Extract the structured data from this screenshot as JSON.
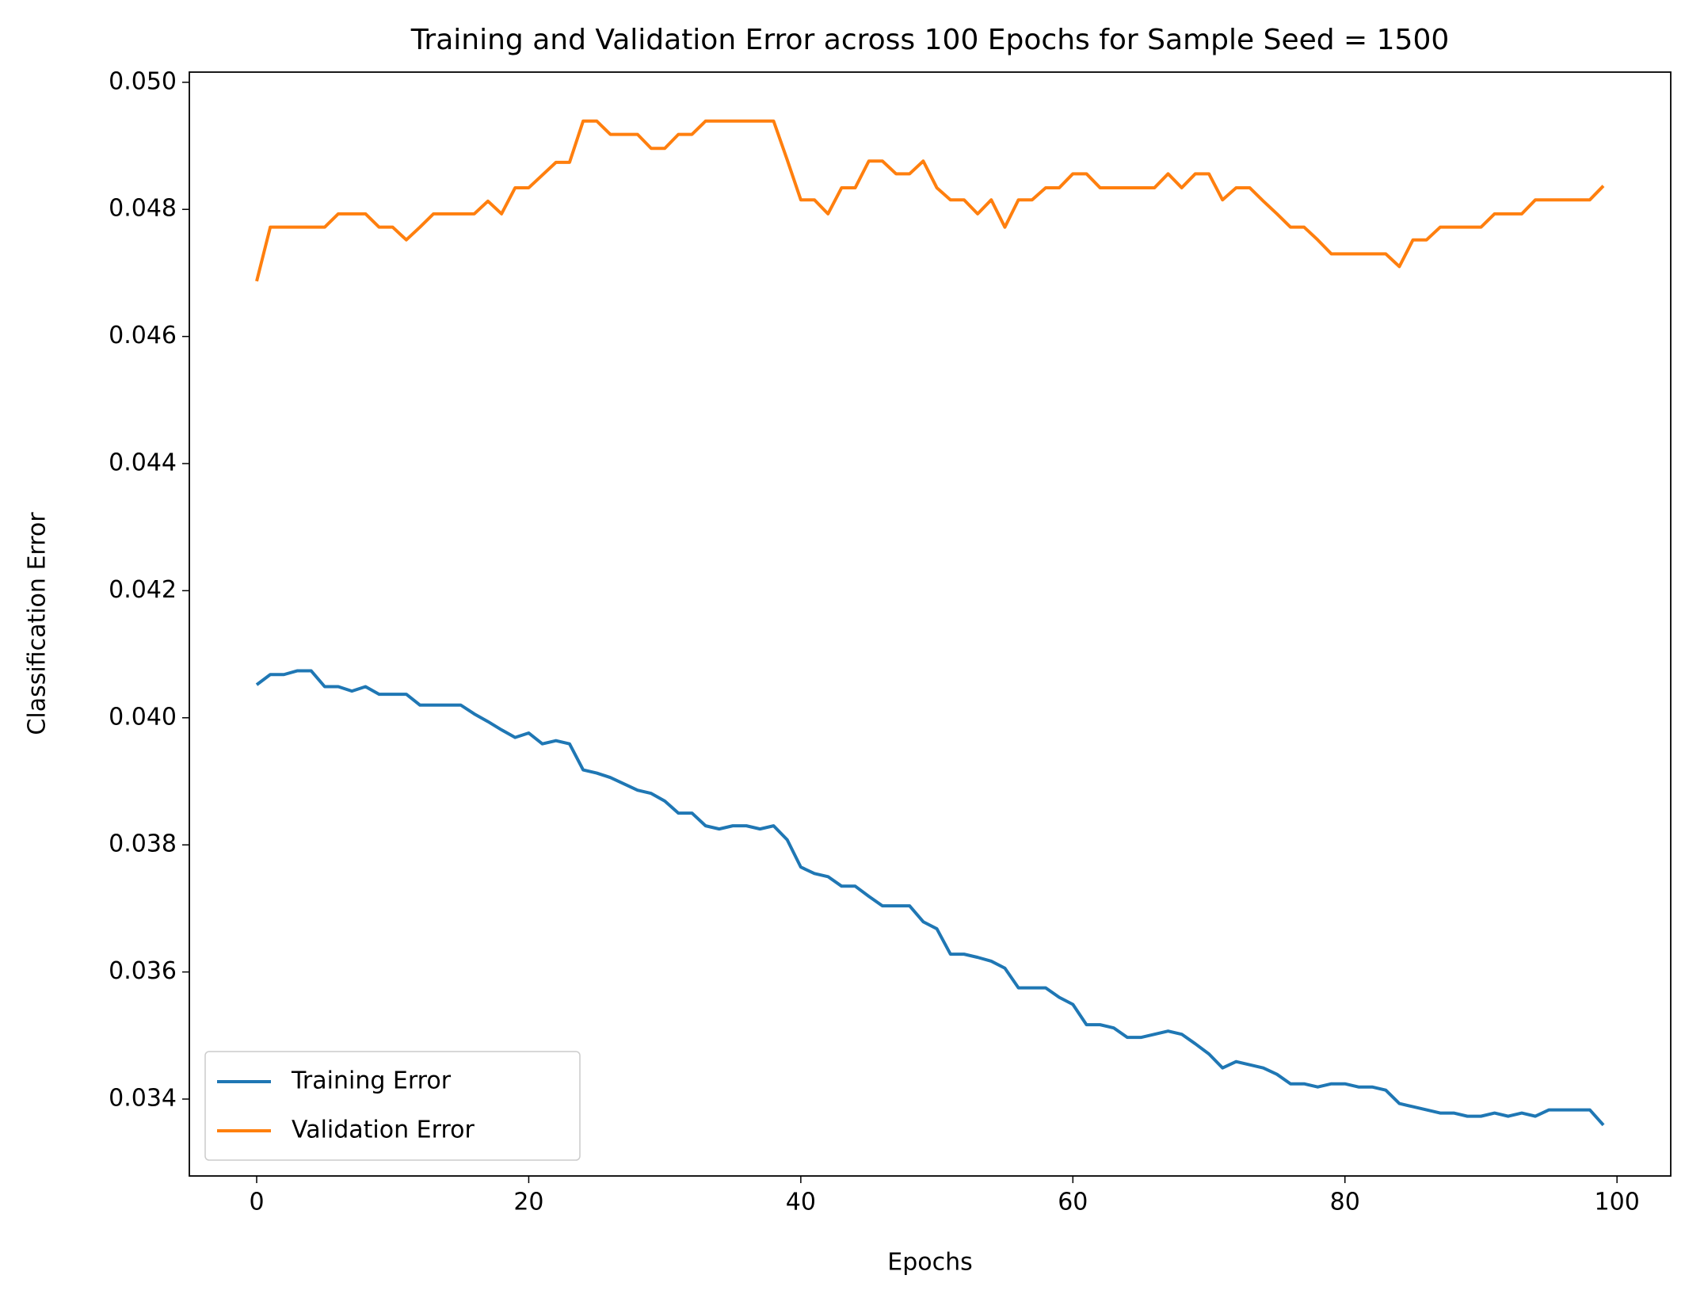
{
  "chart_data": {
    "type": "line",
    "title": "Training and Validation Error across 100 Epochs for Sample Seed = 1500",
    "xlabel": "Epochs",
    "ylabel": "Classification Error",
    "x": [
      0,
      1,
      2,
      3,
      4,
      5,
      6,
      7,
      8,
      9,
      10,
      11,
      12,
      13,
      14,
      15,
      16,
      17,
      18,
      19,
      20,
      21,
      22,
      23,
      24,
      25,
      26,
      27,
      28,
      29,
      30,
      31,
      32,
      33,
      34,
      35,
      36,
      37,
      38,
      39,
      40,
      41,
      42,
      43,
      44,
      45,
      46,
      47,
      48,
      49,
      50,
      51,
      52,
      53,
      54,
      55,
      56,
      57,
      58,
      59,
      60,
      61,
      62,
      63,
      64,
      65,
      66,
      67,
      68,
      69,
      70,
      71,
      72,
      73,
      74,
      75,
      76,
      77,
      78,
      79,
      80,
      81,
      82,
      83,
      84,
      85,
      86,
      87,
      88,
      89,
      90,
      91,
      92,
      93,
      94,
      95,
      96,
      97,
      98,
      99
    ],
    "series": [
      {
        "name": "Training Error",
        "color": "#1f77b4",
        "values": [
          0.04052,
          0.04068,
          0.04068,
          0.04074,
          0.04074,
          0.04049,
          0.04049,
          0.04042,
          0.04049,
          0.04037,
          0.04037,
          0.04037,
          0.0402,
          0.0402,
          0.0402,
          0.0402,
          0.04006,
          0.03994,
          0.03981,
          0.03969,
          0.03976,
          0.03959,
          0.03964,
          0.03959,
          0.03918,
          0.03913,
          0.03906,
          0.03896,
          0.03886,
          0.03881,
          0.03869,
          0.0385,
          0.0385,
          0.0383,
          0.03825,
          0.0383,
          0.0383,
          0.03825,
          0.0383,
          0.03808,
          0.03765,
          0.03755,
          0.0375,
          0.03735,
          0.03735,
          0.03719,
          0.03704,
          0.03704,
          0.03704,
          0.03679,
          0.03668,
          0.03628,
          0.03628,
          0.03623,
          0.03617,
          0.03606,
          0.03575,
          0.03575,
          0.03575,
          0.0356,
          0.03549,
          0.03517,
          0.03517,
          0.03512,
          0.03497,
          0.03497,
          0.03502,
          0.03507,
          0.03502,
          0.03487,
          0.03471,
          0.03449,
          0.03459,
          0.03454,
          0.03449,
          0.03439,
          0.03424,
          0.03424,
          0.03419,
          0.03424,
          0.03424,
          0.03419,
          0.03419,
          0.03414,
          0.03393,
          0.03388,
          0.03383,
          0.03378,
          0.03378,
          0.03373,
          0.03373,
          0.03378,
          0.03373,
          0.03378,
          0.03373,
          0.03383,
          0.03383,
          0.03383,
          0.03383,
          0.03359
        ]
      },
      {
        "name": "Validation Error",
        "color": "#ff7f0e",
        "values": [
          0.04687,
          0.04772,
          0.04772,
          0.04772,
          0.04772,
          0.04772,
          0.04793,
          0.04793,
          0.04793,
          0.04772,
          0.04772,
          0.04752,
          0.04772,
          0.04793,
          0.04793,
          0.04793,
          0.04793,
          0.04813,
          0.04793,
          0.04834,
          0.04834,
          0.04854,
          0.04874,
          0.04874,
          0.04939,
          0.04939,
          0.04918,
          0.04918,
          0.04918,
          0.04896,
          0.04896,
          0.04918,
          0.04918,
          0.04939,
          0.04939,
          0.04939,
          0.04939,
          0.04939,
          0.04939,
          0.04878,
          0.04815,
          0.04815,
          0.04793,
          0.04834,
          0.04834,
          0.04876,
          0.04876,
          0.04856,
          0.04856,
          0.04876,
          0.04834,
          0.04815,
          0.04815,
          0.04793,
          0.04815,
          0.04772,
          0.04815,
          0.04815,
          0.04834,
          0.04834,
          0.04856,
          0.04856,
          0.04834,
          0.04834,
          0.04834,
          0.04834,
          0.04834,
          0.04856,
          0.04834,
          0.04856,
          0.04856,
          0.04815,
          0.04834,
          0.04834,
          0.04813,
          0.04793,
          0.04772,
          0.04772,
          0.04752,
          0.0473,
          0.0473,
          0.0473,
          0.0473,
          0.0473,
          0.0471,
          0.04752,
          0.04752,
          0.04772,
          0.04772,
          0.04772,
          0.04772,
          0.04793,
          0.04793,
          0.04793,
          0.04815,
          0.04815,
          0.04815,
          0.04815,
          0.04815,
          0.04837
        ]
      }
    ],
    "xlim": [
      -4.95,
      103.95
    ],
    "xticks": [
      0,
      20,
      40,
      60,
      80,
      100
    ],
    "ylim": [
      0.03279,
      0.05016
    ],
    "yticks": [
      0.034,
      0.036,
      0.038,
      {
        "value": 0.04,
        "label": "0.040"
      },
      0.042,
      0.044,
      0.046,
      0.048,
      {
        "value": 0.05,
        "label": "0.050"
      }
    ],
    "legend": "lower left"
  }
}
